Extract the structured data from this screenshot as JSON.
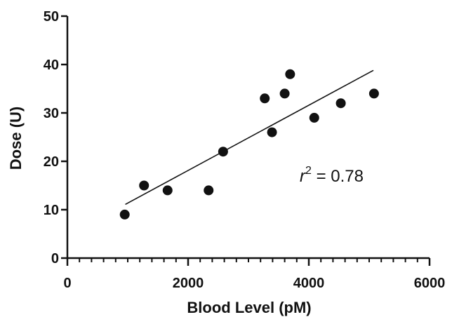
{
  "chart_data": {
    "type": "scatter",
    "xlabel": "Blood Level (pM)",
    "ylabel": "Dose (U)",
    "xlim": [
      0,
      6000
    ],
    "ylim": [
      0,
      50
    ],
    "x_ticks": [
      0,
      2000,
      4000,
      6000
    ],
    "x_tick_labels": [
      "0",
      "2000",
      "4000",
      "6000"
    ],
    "x_minor_step": 200,
    "y_ticks": [
      0,
      10,
      20,
      30,
      40,
      50
    ],
    "y_tick_labels": [
      "0",
      "10",
      "20",
      "30",
      "40",
      "50"
    ],
    "points": [
      {
        "x": 950,
        "y": 9
      },
      {
        "x": 1270,
        "y": 15
      },
      {
        "x": 1660,
        "y": 14
      },
      {
        "x": 2340,
        "y": 14
      },
      {
        "x": 2580,
        "y": 22
      },
      {
        "x": 3270,
        "y": 33
      },
      {
        "x": 3390,
        "y": 26
      },
      {
        "x": 3600,
        "y": 34
      },
      {
        "x": 3690,
        "y": 38
      },
      {
        "x": 4090,
        "y": 29
      },
      {
        "x": 4530,
        "y": 32
      },
      {
        "x": 5080,
        "y": 34
      }
    ],
    "fit_line": {
      "x": [
        960,
        5070
      ],
      "y": [
        11.1,
        38.8
      ]
    },
    "annotation": {
      "r_symbol": "r",
      "exponent": "2",
      "text": " = 0.78"
    },
    "grid": false,
    "marker_color": "#111111",
    "line_color": "#111111"
  }
}
